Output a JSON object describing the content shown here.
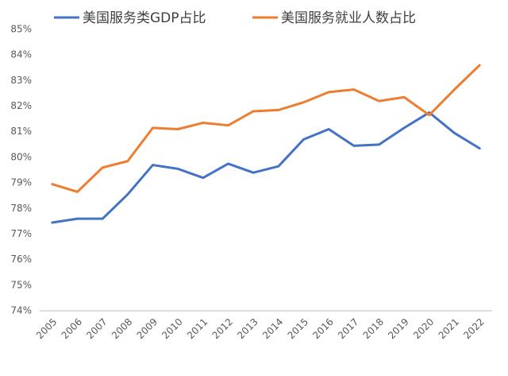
{
  "chart_data": {
    "type": "line",
    "categories": [
      "2005",
      "2006",
      "2007",
      "2008",
      "2009",
      "2010",
      "2011",
      "2012",
      "2013",
      "2014",
      "2015",
      "2016",
      "2017",
      "2018",
      "2019",
      "2020",
      "2021",
      "2022"
    ],
    "series": [
      {
        "name": "美国服务类GDP占比",
        "color": "#4472c4",
        "values": [
          77.45,
          77.6,
          77.6,
          78.55,
          79.7,
          79.55,
          79.2,
          79.75,
          79.4,
          79.65,
          80.7,
          81.1,
          80.45,
          80.5,
          81.15,
          81.75,
          80.95,
          80.35
        ]
      },
      {
        "name": "美国服务就业人数占比",
        "color": "#ed7d31",
        "values": [
          78.95,
          78.65,
          79.6,
          79.85,
          81.15,
          81.1,
          81.35,
          81.25,
          81.8,
          81.85,
          82.15,
          82.55,
          82.65,
          82.2,
          82.35,
          81.65,
          82.65,
          83.6
        ]
      }
    ],
    "ylim": [
      74,
      85
    ],
    "yticks": [
      {
        "value": 74,
        "label": "74%"
      },
      {
        "value": 75,
        "label": "75%"
      },
      {
        "value": 76,
        "label": "76%"
      },
      {
        "value": 77,
        "label": "77%"
      },
      {
        "value": 78,
        "label": "78%"
      },
      {
        "value": 79,
        "label": "79%"
      },
      {
        "value": 80,
        "label": "80%"
      },
      {
        "value": 81,
        "label": "81%"
      },
      {
        "value": 82,
        "label": "82%"
      },
      {
        "value": 83,
        "label": "83%"
      },
      {
        "value": 84,
        "label": "84%"
      },
      {
        "value": 85,
        "label": "85%"
      }
    ],
    "grid": false,
    "legend": "top"
  }
}
